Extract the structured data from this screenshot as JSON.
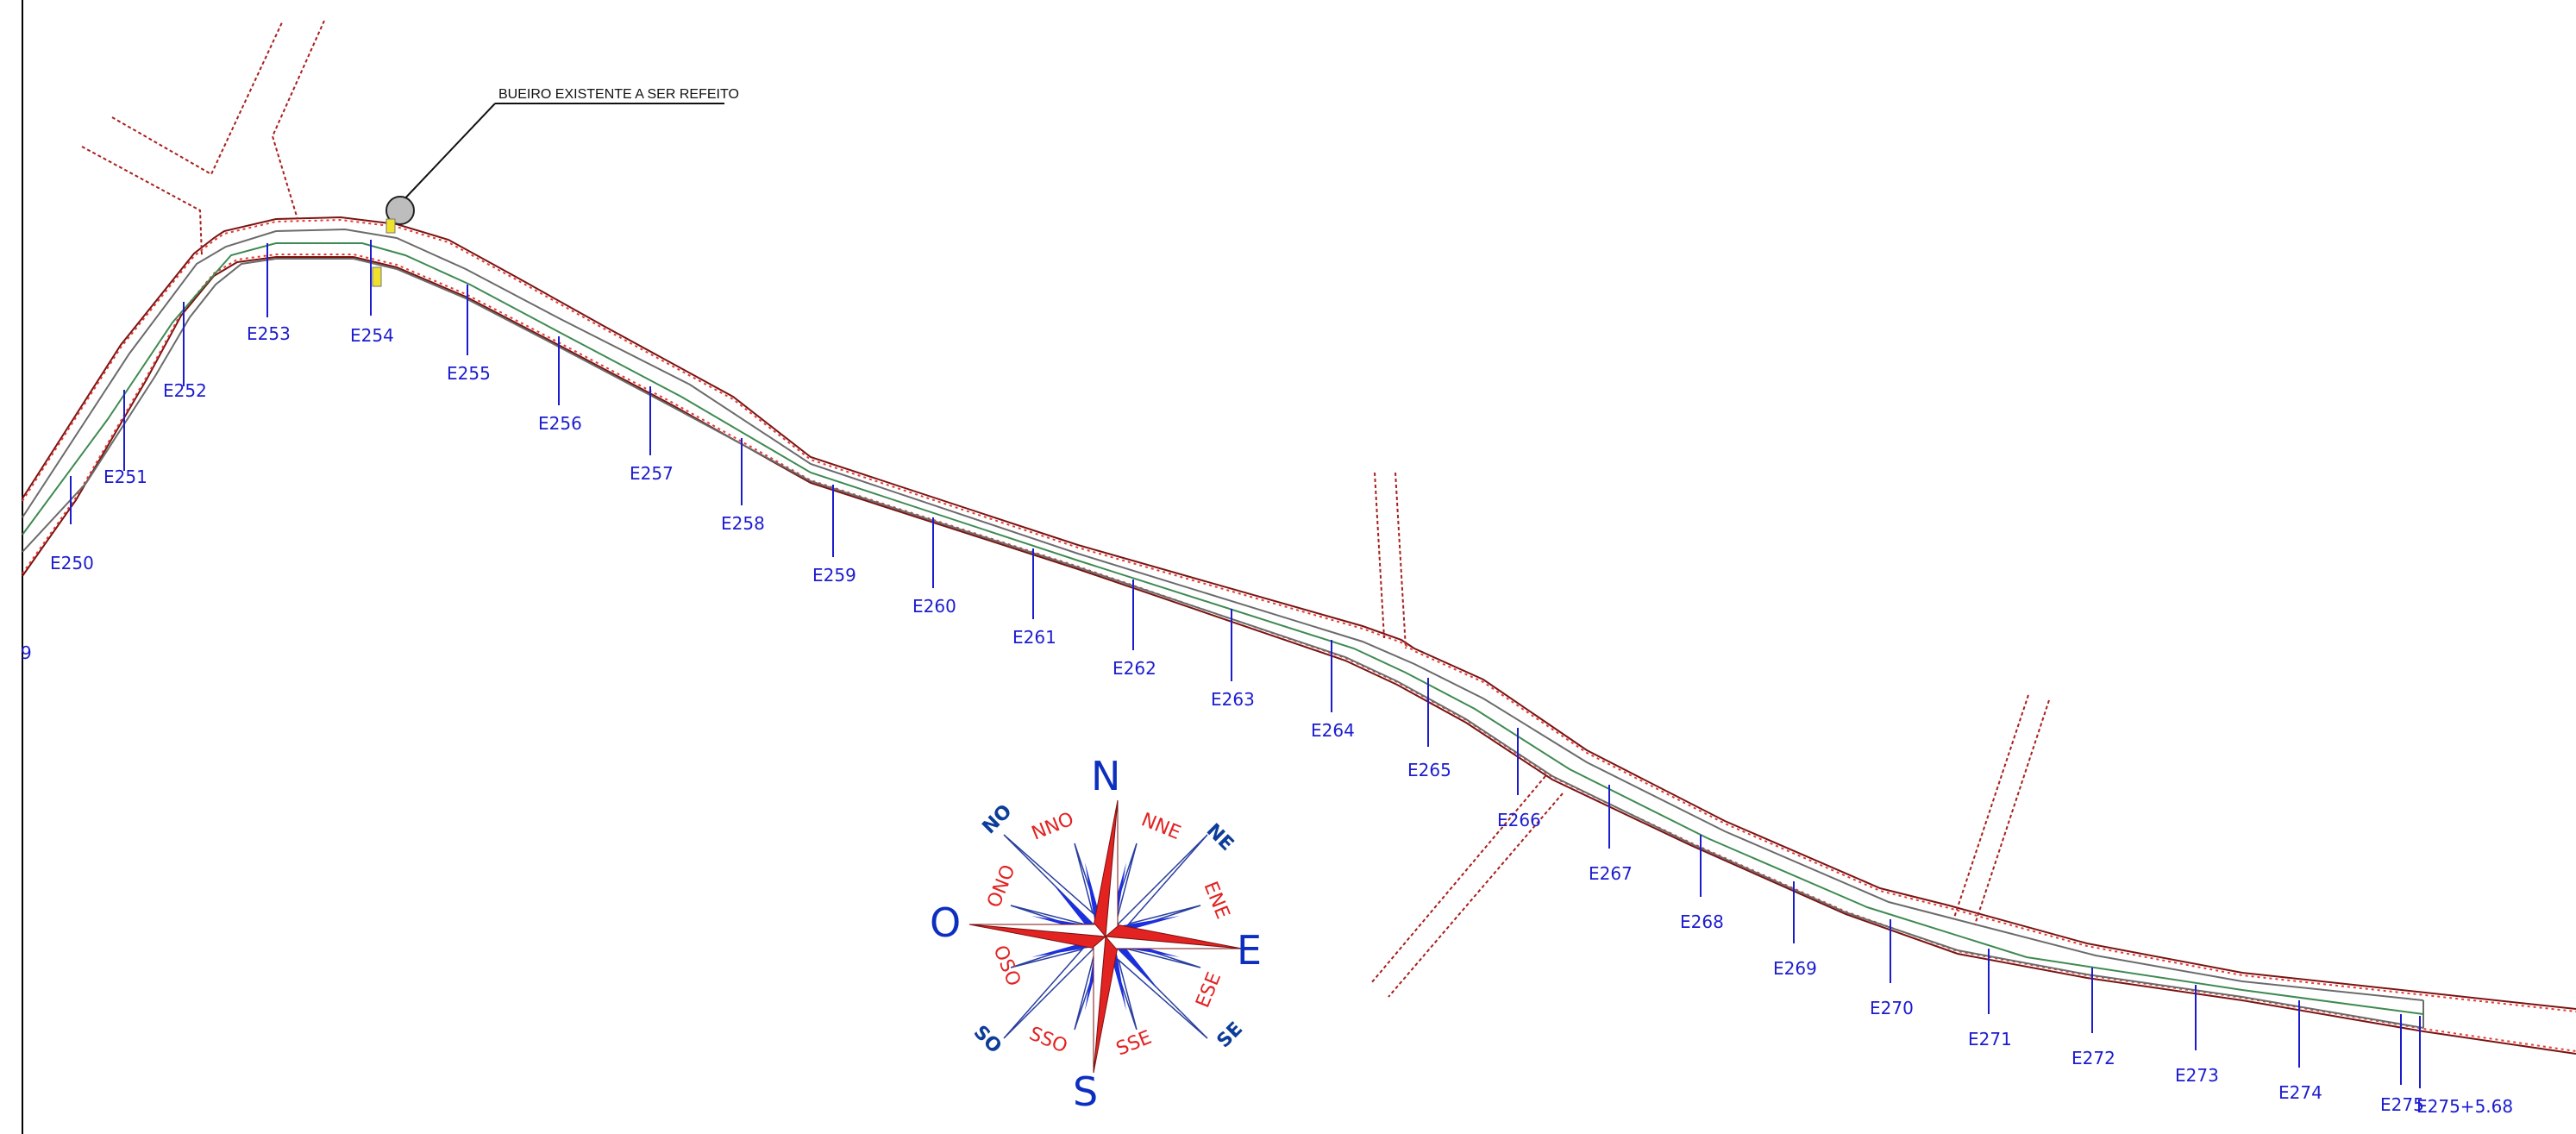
{
  "annotation": {
    "text": "BUEIRO EXISTENTE A SER REFEITO"
  },
  "edge_label": "9",
  "stations": [
    {
      "label": "E250"
    },
    {
      "label": "E251"
    },
    {
      "label": "E252"
    },
    {
      "label": "E253"
    },
    {
      "label": "E254"
    },
    {
      "label": "E255"
    },
    {
      "label": "E256"
    },
    {
      "label": "E257"
    },
    {
      "label": "E258"
    },
    {
      "label": "E259"
    },
    {
      "label": "E260"
    },
    {
      "label": "E261"
    },
    {
      "label": "E262"
    },
    {
      "label": "E263"
    },
    {
      "label": "E264"
    },
    {
      "label": "E265"
    },
    {
      "label": "E266"
    },
    {
      "label": "E267"
    },
    {
      "label": "E268"
    },
    {
      "label": "E269"
    },
    {
      "label": "E270"
    },
    {
      "label": "E271"
    },
    {
      "label": "E272"
    },
    {
      "label": "E273"
    },
    {
      "label": "E274"
    },
    {
      "label": "E275"
    },
    {
      "label": "E275+5.68"
    }
  ],
  "compass": {
    "cardinals": {
      "north": "N",
      "south": "S",
      "east": "E",
      "west": "O"
    },
    "intercardinals": {
      "ne": "NE",
      "no": "NO",
      "se": "SE",
      "so": "SO"
    },
    "minor": {
      "nne": "NNE",
      "nno": "NNO",
      "ene": "ENE",
      "ono": "ONO",
      "ese": "ESE",
      "oso": "OSO",
      "sse": "SSE",
      "sso": "SSO"
    }
  },
  "colors": {
    "station_blue": "#1c1ccf",
    "road_edge_red": "#b3201e",
    "centerline_green": "#3f8a52",
    "compass_red": "#e32222",
    "compass_blue": "#1b2fe0",
    "culvert_yellow": "#f0e22a"
  }
}
